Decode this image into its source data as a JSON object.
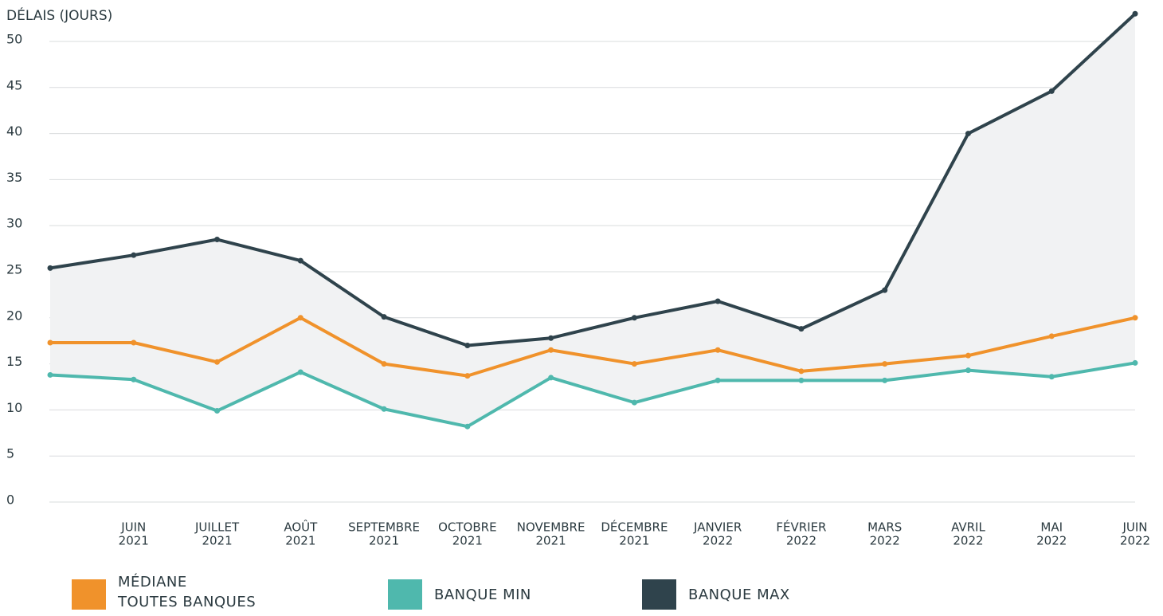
{
  "chart_data": {
    "type": "line",
    "y_label": "DÉLAIS (JOURS)",
    "categories": [
      null,
      [
        "JUIN",
        "2021"
      ],
      [
        "JUILLET",
        "2021"
      ],
      [
        "AOÛT",
        "2021"
      ],
      [
        "SEPTEMBRE",
        "2021"
      ],
      [
        "OCTOBRE",
        "2021"
      ],
      [
        "NOVEMBRE",
        "2021"
      ],
      [
        "DÉCEMBRE",
        "2021"
      ],
      [
        "JANVIER",
        "2022"
      ],
      [
        "FÉVRIER",
        "2022"
      ],
      [
        "MARS",
        "2022"
      ],
      [
        "AVRIL",
        "2022"
      ],
      [
        "MAI",
        "2022"
      ],
      [
        "JUIN",
        "2022"
      ]
    ],
    "series": [
      {
        "name": "MÉDIANE\nTOUTES BANQUES",
        "color": "#f0922b",
        "values": [
          17.3,
          17.3,
          15.2,
          20,
          15,
          13.7,
          16.5,
          15,
          16.5,
          14.2,
          15,
          15.9,
          18,
          20
        ]
      },
      {
        "name": "BANQUE MIN",
        "color": "#4fb8ad",
        "values": [
          13.8,
          13.3,
          9.9,
          14.1,
          10.1,
          8.2,
          13.5,
          10.8,
          13.2,
          13.2,
          13.2,
          14.3,
          13.6,
          15.1
        ]
      },
      {
        "name": "BANQUE MAX",
        "color": "#2f434c",
        "values": [
          25.4,
          26.8,
          28.5,
          26.2,
          20.1,
          17,
          17.8,
          20,
          21.8,
          18.8,
          23,
          40,
          44.6,
          53
        ]
      }
    ],
    "band_color": "#f1f2f3",
    "ylim": [
      0,
      53.5
    ],
    "yticks": [
      0,
      5,
      10,
      15,
      20,
      25,
      30,
      35,
      40,
      45,
      50
    ],
    "grid": true
  }
}
